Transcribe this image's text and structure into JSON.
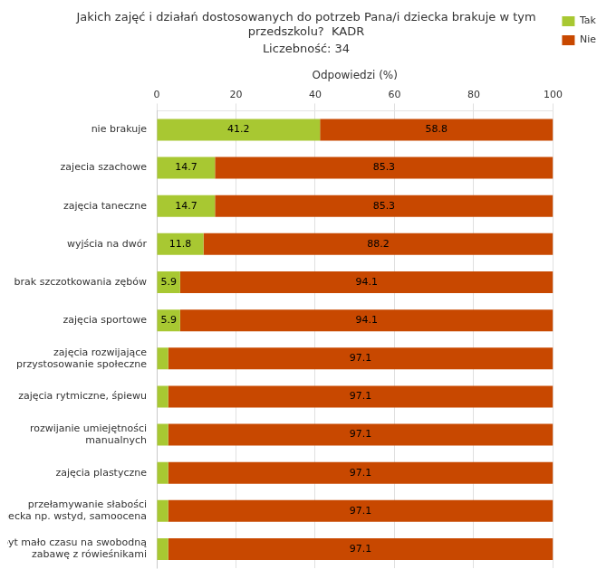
{
  "chart_data": {
    "type": "bar",
    "orientation": "horizontal",
    "stacked": true,
    "title": "Jakich zajęć i działań dostosowanych do potrzeb Pana/i dziecka brakuje w tym\nprzedszkolu?  KADR",
    "subtitle": "Liczebność: 34",
    "xlabel": "Odpowiedzi (%)",
    "categories": [
      "nie brakuje",
      "zajecia szachowe",
      "zajęcia taneczne",
      "wyjścia na dwór",
      "brak szczotkowania zębów",
      "zajęcia sportowe",
      "zajęcia rozwijające\nprzystosowanie społeczne",
      "zajęcia rytmiczne, śpiewu",
      "rozwijanie umiejętności\nmanualnych",
      "zajęcia plastyczne",
      "przełamywanie słabości\ndziecka np. wstyd, samoocena",
      "zbyt mało czasu na swobodną\nzabawę z rówieśnikami"
    ],
    "series": [
      {
        "name": "Tak",
        "color": "#a8c832",
        "values": [
          41.2,
          14.7,
          14.7,
          11.8,
          5.9,
          5.9,
          2.9,
          2.9,
          2.9,
          2.9,
          2.9,
          2.9
        ],
        "value_labels": [
          "41.2",
          "14.7",
          "14.7",
          "11.8",
          "5.9",
          "5.9",
          null,
          null,
          null,
          null,
          null,
          null
        ]
      },
      {
        "name": "Nie",
        "color": "#c84800",
        "values": [
          58.8,
          85.3,
          85.3,
          88.2,
          94.1,
          94.1,
          97.1,
          97.1,
          97.1,
          97.1,
          97.1,
          97.1
        ]
      }
    ],
    "xlim": [
      0,
      100
    ],
    "xticks": [
      0,
      20,
      40,
      60,
      80,
      100
    ],
    "grid": true,
    "legend": "upper right",
    "data_labels": true,
    "tick_labels": true
  }
}
